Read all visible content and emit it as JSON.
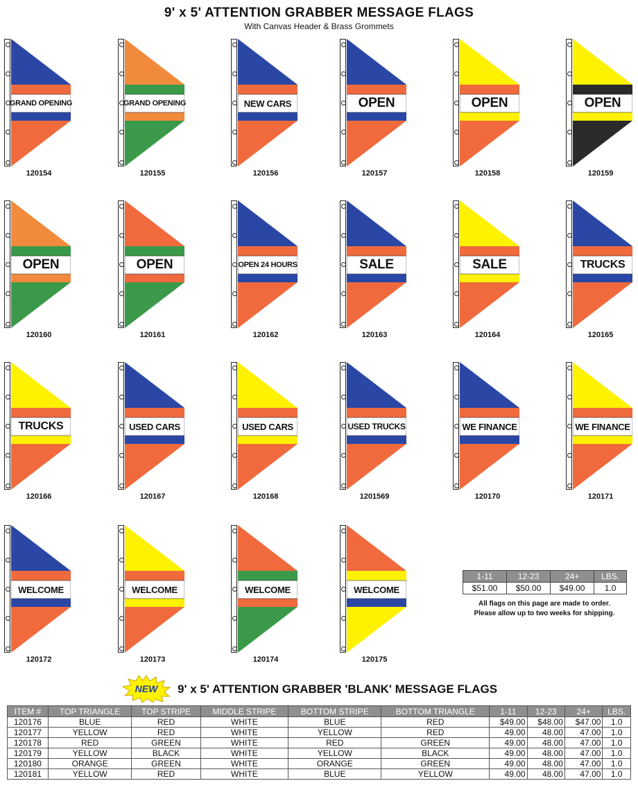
{
  "header": {
    "title": "9' x 5' ATTENTION GRABBER MESSAGE FLAGS",
    "subtitle": "With Canvas Header & Brass Grommets"
  },
  "colors": {
    "blue": "#2a47a6",
    "red": "#f06a3d",
    "green": "#3a9a4a",
    "yellow": "#fff200",
    "orange": "#f28a3c",
    "black": "#2a2a2a",
    "white": "#ffffff",
    "table_header": "#8f8f8f"
  },
  "flags": [
    {
      "number": "120154",
      "message": "GRAND OPENING",
      "top": "blue",
      "top_stripe": "red",
      "bottom_stripe": "blue",
      "bottom": "red"
    },
    {
      "number": "120155",
      "message": "GRAND OPENING",
      "top": "orange",
      "top_stripe": "green",
      "bottom_stripe": "orange",
      "bottom": "green"
    },
    {
      "number": "120156",
      "message": "NEW CARS",
      "top": "blue",
      "top_stripe": "red",
      "bottom_stripe": "blue",
      "bottom": "red"
    },
    {
      "number": "120157",
      "message": "OPEN",
      "top": "blue",
      "top_stripe": "red",
      "bottom_stripe": "blue",
      "bottom": "red"
    },
    {
      "number": "120158",
      "message": "OPEN",
      "top": "yellow",
      "top_stripe": "red",
      "bottom_stripe": "yellow",
      "bottom": "red"
    },
    {
      "number": "120159",
      "message": "OPEN",
      "top": "yellow",
      "top_stripe": "black",
      "bottom_stripe": "yellow",
      "bottom": "black"
    },
    {
      "number": "120160",
      "message": "OPEN",
      "top": "orange",
      "top_stripe": "green",
      "bottom_stripe": "orange",
      "bottom": "green"
    },
    {
      "number": "120161",
      "message": "OPEN",
      "top": "red",
      "top_stripe": "green",
      "bottom_stripe": "red",
      "bottom": "green"
    },
    {
      "number": "120162",
      "message": "OPEN 24 HOURS",
      "top": "blue",
      "top_stripe": "red",
      "bottom_stripe": "blue",
      "bottom": "red"
    },
    {
      "number": "120163",
      "message": "SALE",
      "top": "blue",
      "top_stripe": "red",
      "bottom_stripe": "blue",
      "bottom": "red"
    },
    {
      "number": "120164",
      "message": "SALE",
      "top": "yellow",
      "top_stripe": "red",
      "bottom_stripe": "yellow",
      "bottom": "red"
    },
    {
      "number": "120165",
      "message": "TRUCKS",
      "top": "blue",
      "top_stripe": "red",
      "bottom_stripe": "blue",
      "bottom": "red"
    },
    {
      "number": "120166",
      "message": "TRUCKS",
      "top": "yellow",
      "top_stripe": "red",
      "bottom_stripe": "yellow",
      "bottom": "red"
    },
    {
      "number": "120167",
      "message": "USED CARS",
      "top": "blue",
      "top_stripe": "red",
      "bottom_stripe": "blue",
      "bottom": "red"
    },
    {
      "number": "120168",
      "message": "USED CARS",
      "top": "yellow",
      "top_stripe": "red",
      "bottom_stripe": "yellow",
      "bottom": "red"
    },
    {
      "number": "1201569",
      "message": "USED TRUCKS",
      "top": "blue",
      "top_stripe": "red",
      "bottom_stripe": "blue",
      "bottom": "red"
    },
    {
      "number": "120170",
      "message": "WE FINANCE",
      "top": "blue",
      "top_stripe": "red",
      "bottom_stripe": "blue",
      "bottom": "red"
    },
    {
      "number": "120171",
      "message": "WE FINANCE",
      "top": "yellow",
      "top_stripe": "red",
      "bottom_stripe": "yellow",
      "bottom": "red"
    },
    {
      "number": "120172",
      "message": "WELCOME",
      "top": "blue",
      "top_stripe": "red",
      "bottom_stripe": "blue",
      "bottom": "red"
    },
    {
      "number": "120173",
      "message": "WELCOME",
      "top": "yellow",
      "top_stripe": "red",
      "bottom_stripe": "yellow",
      "bottom": "red"
    },
    {
      "number": "120174",
      "message": "WELCOME",
      "top": "red",
      "top_stripe": "green",
      "bottom_stripe": "red",
      "bottom": "green"
    },
    {
      "number": "120175",
      "message": "WELCOME",
      "top": "red",
      "top_stripe": "yellow",
      "bottom_stripe": "blue",
      "bottom": "yellow"
    }
  ],
  "pricing": {
    "headers": [
      "1-11",
      "12-23",
      "24+",
      "LBS."
    ],
    "values": [
      "$51.00",
      "$50.00",
      "$49.00",
      "1.0"
    ],
    "note_line1": "All flags on this page are made to order.",
    "note_line2": "Please allow up to two weeks for shipping."
  },
  "blank_section": {
    "badge": "NEW",
    "title": "9' x 5' ATTENTION GRABBER 'BLANK' MESSAGE FLAGS",
    "headers": [
      "ITEM #",
      "TOP TRIANGLE",
      "TOP STRIPE",
      "MIDDLE STRIPE",
      "BOTTOM STRIPE",
      "BOTTOM TRIANGLE",
      "1-11",
      "12-23",
      "24+",
      "LBS."
    ],
    "rows": [
      [
        "120176",
        "BLUE",
        "RED",
        "WHITE",
        "BLUE",
        "RED",
        "$49.00",
        "$48.00",
        "$47.00",
        "1.0"
      ],
      [
        "120177",
        "YELLOW",
        "RED",
        "WHITE",
        "YELLOW",
        "RED",
        "49.00",
        "48.00",
        "47.00",
        "1.0"
      ],
      [
        "120178",
        "RED",
        "GREEN",
        "WHITE",
        "RED",
        "GREEN",
        "49.00",
        "48.00",
        "47.00",
        "1.0"
      ],
      [
        "120179",
        "YELLOW",
        "BLACK",
        "WHITE",
        "YELLOW",
        "BLACK",
        "49.00",
        "48.00",
        "47.00",
        "1.0"
      ],
      [
        "120180",
        "ORANGE",
        "GREEN",
        "WHITE",
        "ORANGE",
        "GREEN",
        "49.00",
        "48.00",
        "47.00",
        "1.0"
      ],
      [
        "120181",
        "YELLOW",
        "RED",
        "WHITE",
        "BLUE",
        "YELLOW",
        "49.00",
        "48.00",
        "47.00",
        "1.0"
      ]
    ]
  }
}
